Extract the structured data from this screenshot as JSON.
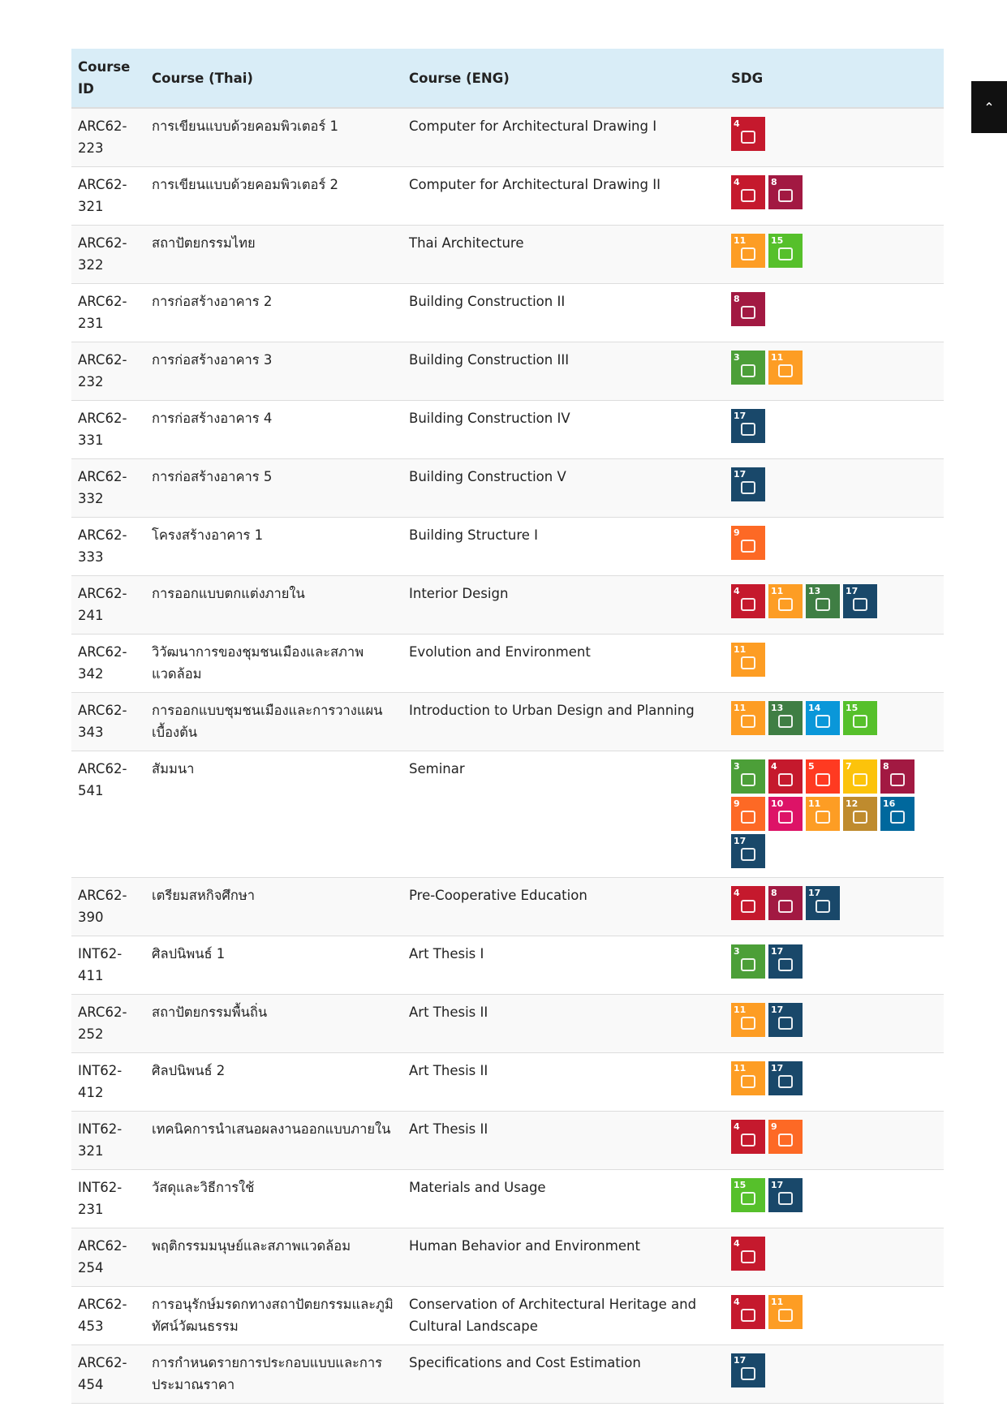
{
  "header": [
    "Course ID",
    "Course (Thai)",
    "Course (ENG)",
    "SDG"
  ],
  "rows": [
    {
      "id": "ARC62-223",
      "thai": "การเขียนแบบด้วยคอมพิวเตอร์ 1",
      "eng": "Computer for Architectural Drawing I",
      "sdg": [
        4
      ]
    },
    {
      "id": "ARC62-321",
      "thai": "การเขียนแบบด้วยคอมพิวเตอร์ 2",
      "eng": "Computer for Architectural Drawing II",
      "sdg": [
        4,
        8
      ]
    },
    {
      "id": "ARC62-322",
      "thai": "สถาปัตยกรรมไทย",
      "eng": "Thai Architecture",
      "sdg": [
        11,
        15
      ]
    },
    {
      "id": "ARC62-231",
      "thai": "การก่อสร้างอาคาร 2",
      "eng": "Building Construction II",
      "sdg": [
        8
      ]
    },
    {
      "id": "ARC62-232",
      "thai": "การก่อสร้างอาคาร 3",
      "eng": "Building Construction III",
      "sdg": [
        3,
        11
      ]
    },
    {
      "id": "ARC62-331",
      "thai": "การก่อสร้างอาคาร 4",
      "eng": "Building Construction IV",
      "sdg": [
        17
      ]
    },
    {
      "id": "ARC62-332",
      "thai": "การก่อสร้างอาคาร 5",
      "eng": "Building Construction V",
      "sdg": [
        17
      ]
    },
    {
      "id": "ARC62-333",
      "thai": "โครงสร้างอาคาร 1",
      "eng": "Building Structure I",
      "sdg": [
        9
      ]
    },
    {
      "id": "ARC62-241",
      "thai": "การออกแบบตกแต่งภายใน",
      "eng": "Interior Design",
      "sdg": [
        4,
        11,
        13,
        17
      ]
    },
    {
      "id": "ARC62-342",
      "thai": "วิวัฒนาการของชุมชนเมืองและสภาพแวดล้อม",
      "eng": "Evolution and Environment",
      "sdg": [
        11
      ]
    },
    {
      "id": "ARC62-343",
      "thai": "การออกแบบชุมชนเมืองและการวางแผนเบื้องต้น",
      "eng": "Introduction to Urban Design and Planning",
      "sdg": [
        11,
        13,
        14,
        15
      ]
    },
    {
      "id": "ARC62-541",
      "thai": "สัมมนา",
      "eng": "Seminar",
      "sdg": [
        3,
        4,
        5,
        7,
        8,
        9,
        10,
        11,
        12,
        16,
        17
      ]
    },
    {
      "id": "ARC62-390",
      "thai": "เตรียมสหกิจศึกษา",
      "eng": "Pre-Cooperative Education",
      "sdg": [
        4,
        8,
        17
      ]
    },
    {
      "id": "INT62-411",
      "thai": "ศิลปนิพนธ์ 1",
      "eng": "Art Thesis I",
      "sdg": [
        3,
        17
      ]
    },
    {
      "id": "ARC62-252",
      "thai": "สถาปัตยกรรมพื้นถิ่น",
      "eng": "Art Thesis II",
      "sdg": [
        11,
        17
      ]
    },
    {
      "id": "INT62-412",
      "thai": "ศิลปนิพนธ์ 2",
      "eng": "Art Thesis II",
      "sdg": [
        11,
        17
      ]
    },
    {
      "id": "INT62-321",
      "thai": "เทคนิคการนำเสนอผลงานออกแบบภายใน",
      "eng": "Art Thesis II",
      "sdg": [
        4,
        9
      ]
    },
    {
      "id": "INT62-231",
      "thai": "วัสดุและวิธีการใช้",
      "eng": "Materials and Usage",
      "sdg": [
        15,
        17
      ]
    },
    {
      "id": "ARC62-254",
      "thai": "พฤติกรรมมนุษย์และสภาพแวดล้อม",
      "eng": "Human Behavior and Environment",
      "sdg": [
        4
      ]
    },
    {
      "id": "ARC62-453",
      "thai": "การอนุรักษ์มรดกทางสถาปัตยกรรมและภูมิทัศน์วัฒนธรรม",
      "eng": "Conservation of Architectural Heritage and Cultural Landscape",
      "sdg": [
        4,
        11
      ]
    },
    {
      "id": "ARC62-454",
      "thai": "การกำหนดรายการประกอบแบบและการประมาณราคา",
      "eng": "Specifications and Cost Estimation",
      "sdg": [
        17
      ]
    }
  ]
}
